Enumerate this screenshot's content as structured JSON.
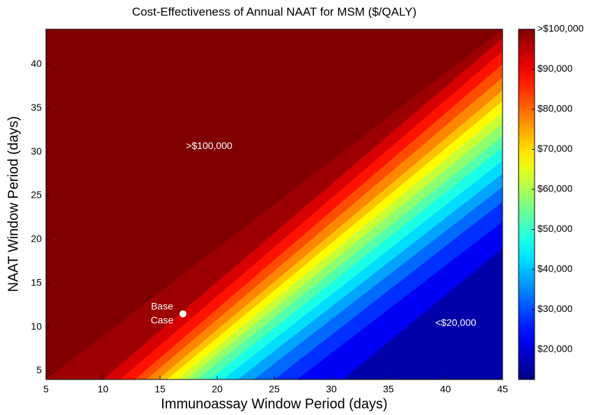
{
  "chart_data": {
    "type": "contour",
    "title": "Cost-Effectiveness of Annual NAAT for MSM ($/QALY)",
    "xlabel": "Immunoassay Window Period (days)",
    "ylabel": "NAAT Window Period (days)",
    "xlim": [
      5,
      45
    ],
    "ylim": [
      4,
      44
    ],
    "xticks": [
      5,
      10,
      15,
      20,
      25,
      30,
      35,
      40,
      45
    ],
    "yticks": [
      5,
      10,
      15,
      20,
      25,
      30,
      35,
      40
    ],
    "colormap": "jet",
    "clim": [
      12500,
      100000
    ],
    "cticks": [
      {
        "value": 20000,
        "label": "$20,000"
      },
      {
        "value": 30000,
        "label": "$30,000"
      },
      {
        "value": 40000,
        "label": "$40,000"
      },
      {
        "value": 50000,
        "label": "$50,000"
      },
      {
        "value": 60000,
        "label": "$60,000"
      },
      {
        "value": 70000,
        "label": "$70,000"
      },
      {
        "value": 80000,
        "label": "$80,000"
      },
      {
        "value": 90000,
        "label": "$90,000"
      },
      {
        "value": 100000,
        "label": ">$100,000"
      }
    ],
    "contours": [
      {
        "level": 20000,
        "x": [
          31,
          45
        ],
        "y": [
          4,
          19
        ]
      },
      {
        "level": 25000,
        "x": [
          27,
          45
        ],
        "y": [
          4,
          22
        ]
      },
      {
        "level": 30000,
        "x": [
          25,
          45
        ],
        "y": [
          4,
          24.3
        ]
      },
      {
        "level": 35000,
        "x": [
          23.2,
          45
        ],
        "y": [
          4,
          26
        ]
      },
      {
        "level": 40000,
        "x": [
          21.8,
          45
        ],
        "y": [
          4,
          27.5
        ]
      },
      {
        "level": 45000,
        "x": [
          20.5,
          45
        ],
        "y": [
          4,
          29
        ]
      },
      {
        "level": 50000,
        "x": [
          19.3,
          45
        ],
        "y": [
          4,
          30.5
        ]
      },
      {
        "level": 55000,
        "x": [
          18.2,
          45
        ],
        "y": [
          4,
          31.8
        ]
      },
      {
        "level": 60000,
        "x": [
          17.3,
          45
        ],
        "y": [
          4,
          33.2
        ]
      },
      {
        "level": 65000,
        "x": [
          16.5,
          45
        ],
        "y": [
          4,
          34.5
        ]
      },
      {
        "level": 70000,
        "x": [
          15.6,
          45
        ],
        "y": [
          4,
          35.8
        ]
      },
      {
        "level": 75000,
        "x": [
          14.8,
          45
        ],
        "y": [
          4,
          37
        ]
      },
      {
        "level": 80000,
        "x": [
          13.8,
          45
        ],
        "y": [
          4,
          38.5
        ]
      },
      {
        "level": 85000,
        "x": [
          12.8,
          45
        ],
        "y": [
          4,
          40
        ]
      },
      {
        "level": 90000,
        "x": [
          11.5,
          45
        ],
        "y": [
          4,
          41.5
        ]
      },
      {
        "level": 95000,
        "x": [
          10,
          45
        ],
        "y": [
          4,
          43
        ]
      },
      {
        "level": 100000,
        "x": [
          5,
          45
        ],
        "y": [
          4,
          44
        ]
      }
    ],
    "annotations": [
      {
        "text": ">$100,000",
        "x": 19.3,
        "y": 30.6
      },
      {
        "text": "<$20,000",
        "x": 40.9,
        "y": 10.4
      }
    ],
    "point": {
      "lines": [
        "Base",
        "Case"
      ],
      "x": 17,
      "y": 11.5,
      "color": "#ffffff"
    }
  }
}
